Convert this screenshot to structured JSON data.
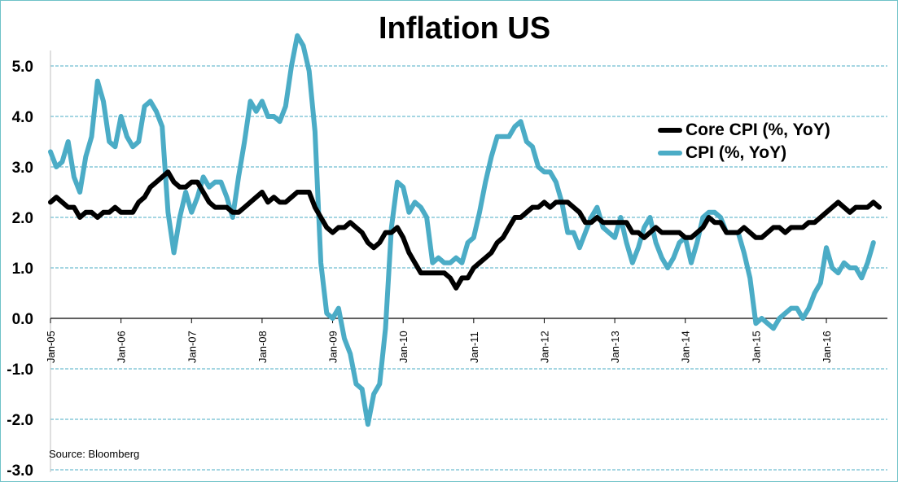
{
  "colors": {
    "core_cpi": "#000000",
    "cpi": "#4bacc6",
    "grid": "#4bacc6",
    "border": "#6fc2c8"
  },
  "footer": {
    "source": "Source:  Bloomberg"
  },
  "chart_data": {
    "type": "line",
    "title": "Inflation US",
    "xlabel": "",
    "ylabel": "",
    "ylim": [
      -3.0,
      6.0
    ],
    "yticks": [
      "5.0",
      "4.0",
      "3.0",
      "2.0",
      "1.0",
      "0.0",
      "-1.0",
      "-2.0",
      "-3.0"
    ],
    "ytick_values": [
      5,
      4,
      3,
      2,
      1,
      0,
      -1,
      -2,
      -3
    ],
    "xticks": [
      "Jan-05",
      "Jan-06",
      "Jan-07",
      "Jan-08",
      "Jan-09",
      "Jan-10",
      "Jan-11",
      "Jan-12",
      "Jan-13",
      "Jan-14",
      "Jan-15",
      "Jan-16"
    ],
    "x_start": "2005-01",
    "x_end": "2016-09",
    "grid": true,
    "legend_position": "right",
    "series": [
      {
        "name": "Core CPI (%, YoY)",
        "values": [
          2.3,
          2.4,
          2.3,
          2.2,
          2.2,
          2.0,
          2.1,
          2.1,
          2.0,
          2.1,
          2.1,
          2.2,
          2.1,
          2.1,
          2.1,
          2.3,
          2.4,
          2.6,
          2.7,
          2.8,
          2.9,
          2.7,
          2.6,
          2.6,
          2.7,
          2.7,
          2.5,
          2.3,
          2.2,
          2.2,
          2.2,
          2.1,
          2.1,
          2.2,
          2.3,
          2.4,
          2.5,
          2.3,
          2.4,
          2.3,
          2.3,
          2.4,
          2.5,
          2.5,
          2.5,
          2.2,
          2.0,
          1.8,
          1.7,
          1.8,
          1.8,
          1.9,
          1.8,
          1.7,
          1.5,
          1.4,
          1.5,
          1.7,
          1.7,
          1.8,
          1.6,
          1.3,
          1.1,
          0.9,
          0.9,
          0.9,
          0.9,
          0.9,
          0.8,
          0.6,
          0.8,
          0.8,
          1.0,
          1.1,
          1.2,
          1.3,
          1.5,
          1.6,
          1.8,
          2.0,
          2.0,
          2.1,
          2.2,
          2.2,
          2.3,
          2.2,
          2.3,
          2.3,
          2.3,
          2.2,
          2.1,
          1.9,
          1.9,
          2.0,
          1.9,
          1.9,
          1.9,
          1.9,
          1.9,
          1.7,
          1.7,
          1.6,
          1.7,
          1.8,
          1.7,
          1.7,
          1.7,
          1.7,
          1.6,
          1.6,
          1.7,
          1.8,
          2.0,
          1.9,
          1.9,
          1.7,
          1.7,
          1.7,
          1.8,
          1.7,
          1.6,
          1.6,
          1.7,
          1.8,
          1.8,
          1.7,
          1.8,
          1.8,
          1.8,
          1.9,
          1.9,
          2.0,
          2.1,
          2.2,
          2.3,
          2.2,
          2.1,
          2.2,
          2.2,
          2.2,
          2.3,
          2.2
        ]
      },
      {
        "name": "CPI (%, YoY)",
        "values": [
          3.3,
          3.0,
          3.1,
          3.5,
          2.8,
          2.5,
          3.2,
          3.6,
          4.7,
          4.3,
          3.5,
          3.4,
          4.0,
          3.6,
          3.4,
          3.5,
          4.2,
          4.3,
          4.1,
          3.8,
          2.1,
          1.3,
          2.0,
          2.5,
          2.1,
          2.4,
          2.8,
          2.6,
          2.7,
          2.7,
          2.4,
          2.0,
          2.8,
          3.5,
          4.3,
          4.1,
          4.3,
          4.0,
          4.0,
          3.9,
          4.2,
          5.0,
          5.6,
          5.4,
          4.9,
          3.7,
          1.1,
          0.1,
          0.0,
          0.2,
          -0.4,
          -0.7,
          -1.3,
          -1.4,
          -2.1,
          -1.5,
          -1.3,
          -0.2,
          1.8,
          2.7,
          2.6,
          2.1,
          2.3,
          2.2,
          2.0,
          1.1,
          1.2,
          1.1,
          1.1,
          1.2,
          1.1,
          1.5,
          1.6,
          2.1,
          2.7,
          3.2,
          3.6,
          3.6,
          3.6,
          3.8,
          3.9,
          3.5,
          3.4,
          3.0,
          2.9,
          2.9,
          2.7,
          2.3,
          1.7,
          1.7,
          1.4,
          1.7,
          2.0,
          2.2,
          1.8,
          1.7,
          1.6,
          2.0,
          1.5,
          1.1,
          1.4,
          1.8,
          2.0,
          1.5,
          1.2,
          1.0,
          1.2,
          1.5,
          1.6,
          1.1,
          1.5,
          2.0,
          2.1,
          2.1,
          2.0,
          1.7,
          1.7,
          1.7,
          1.3,
          0.8,
          -0.1,
          0.0,
          -0.1,
          -0.2,
          0.0,
          0.1,
          0.2,
          0.2,
          0.0,
          0.2,
          0.5,
          0.7,
          1.4,
          1.0,
          0.9,
          1.1,
          1.0,
          1.0,
          0.8,
          1.1,
          1.5
        ]
      }
    ]
  }
}
